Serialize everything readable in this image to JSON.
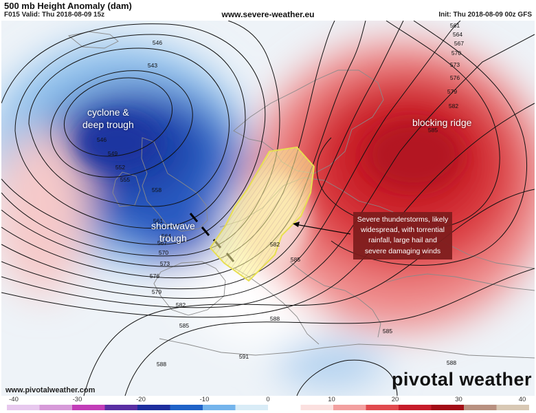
{
  "header": {
    "title": "500 mb Height Anomaly (dam)",
    "valid": "F015 Valid: Thu 2018-08-09 15z",
    "site": "www.severe-weather.eu",
    "init": "Init: Thu 2018-08-09 00z GFS"
  },
  "annotations": {
    "cyclone": [
      "cyclone &",
      "deep trough"
    ],
    "ridge": "blocking ridge",
    "shortwave": [
      "shortwave",
      "trough"
    ],
    "storms": [
      "Severe thunderstorms, likely",
      "widespread, with torrential",
      "rainfall, large hail and",
      "severe damaging winds"
    ]
  },
  "contour_labels": [
    "546",
    "543",
    "546",
    "549",
    "552",
    "555",
    "558",
    "561",
    "564",
    "567",
    "570",
    "573",
    "576",
    "579",
    "582",
    "585",
    "588",
    "591",
    "561",
    "564",
    "567",
    "570",
    "573",
    "576",
    "579",
    "582",
    "585",
    "582",
    "585",
    "588",
    "585",
    "588"
  ],
  "colorbar": {
    "ticks": [
      "-40",
      "-30",
      "-20",
      "-10",
      "0",
      "10",
      "20",
      "30",
      "40"
    ],
    "range": [
      -40,
      40
    ],
    "colors": [
      "#e8c8ee",
      "#d79ad9",
      "#c23db8",
      "#5a2fa3",
      "#1d2e9e",
      "#1f63c8",
      "#74b4ec",
      "#d9ecf7",
      "#ffffff",
      "#fbe0df",
      "#f3a0a0",
      "#e14a4e",
      "#c61c2a",
      "#a30c16",
      "#b89080",
      "#d8c8b4"
    ]
  },
  "footer": {
    "url": "www.pivotalweather.com",
    "brand": "pivotal weather"
  }
}
